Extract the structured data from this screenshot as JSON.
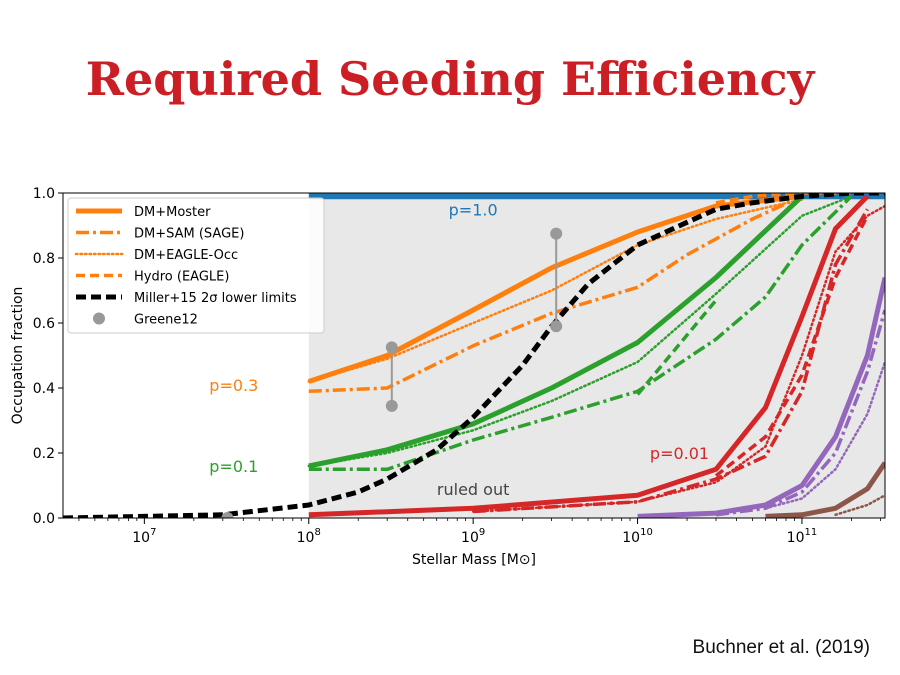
{
  "slide": {
    "title": "Required Seeding Efficiency",
    "citation": "Buchner et al. (2019)"
  },
  "colors": {
    "title": "#cc1f25",
    "orange": "#ff7f0e",
    "green": "#2ca02c",
    "red": "#d62728",
    "purple": "#9467bd",
    "brown": "#8c564b",
    "blue": "#1f77b4",
    "black": "#000000",
    "gray": "#999999",
    "shade": "#e8e8e8"
  },
  "chart_data": {
    "type": "line",
    "xlabel": "Stellar Mass [M⊙]",
    "ylabel": "Occupation fraction",
    "x_scale": "log",
    "xlim": [
      3200000.0,
      320000000000.0
    ],
    "ylim": [
      0,
      1
    ],
    "x_ticks": [
      {
        "value": 10000000.0,
        "base": "10",
        "exp": "7"
      },
      {
        "value": 100000000.0,
        "base": "10",
        "exp": "8"
      },
      {
        "value": 1000000000.0,
        "base": "10",
        "exp": "9"
      },
      {
        "value": 10000000000.0,
        "base": "10",
        "exp": "10"
      },
      {
        "value": 100000000000.0,
        "base": "10",
        "exp": "11"
      }
    ],
    "y_ticks": [
      "0.0",
      "0.2",
      "0.4",
      "0.6",
      "0.8",
      "1.0"
    ],
    "y_tick_values": [
      0,
      0.2,
      0.4,
      0.6,
      0.8,
      1.0
    ],
    "legend_position": "top-left",
    "legend": [
      {
        "label": "DM+Moster",
        "style": "solid"
      },
      {
        "label": "DM+SAM (SAGE)",
        "style": "dashdot"
      },
      {
        "label": "DM+EAGLE-Occ",
        "style": "dotted"
      },
      {
        "label": "Hydro (EAGLE)",
        "style": "dashed"
      },
      {
        "label": "Miller+15 2σ lower limits",
        "style": "black-dashed"
      },
      {
        "label": "Greene12",
        "style": "gray-marker"
      }
    ],
    "annotations": [
      {
        "text": "p=1.0",
        "x": 1000000000.0,
        "y": 0.95,
        "color": "blue"
      },
      {
        "text": "p=0.3",
        "x": 35000000.0,
        "y": 0.41,
        "color": "orange"
      },
      {
        "text": "p=0.1",
        "x": 35000000.0,
        "y": 0.16,
        "color": "green"
      },
      {
        "text": "p=0.01",
        "x": 18000000000.0,
        "y": 0.2,
        "color": "red"
      },
      {
        "text": "ruled out",
        "x": 1000000000.0,
        "y": 0.09,
        "color": "dark"
      }
    ],
    "shaded_region_upper": {
      "x": [
        100000000.0,
        1000000000.0,
        10000000000.0,
        50000000000.0,
        320000000000.0
      ],
      "y": [
        0.99,
        0.99,
        0.99,
        0.99,
        0.99
      ]
    },
    "series": [
      {
        "color": "blue",
        "style": "solid",
        "x": [
          100000000.0,
          320000000000.0
        ],
        "y": [
          0.99,
          0.99
        ]
      },
      {
        "color": "orange",
        "style": "solid",
        "x": [
          100000000.0,
          300000000.0,
          1000000000.0,
          3000000000.0,
          10000000000.0,
          30000000000.0,
          100000000000.0
        ],
        "y": [
          0.42,
          0.5,
          0.64,
          0.77,
          0.88,
          0.96,
          0.99
        ]
      },
      {
        "color": "orange",
        "style": "dashdot",
        "x": [
          100000000.0,
          300000000.0,
          1000000000.0,
          3000000000.0,
          10000000000.0,
          20000000000.0,
          50000000000.0,
          100000000000.0
        ],
        "y": [
          0.39,
          0.4,
          0.53,
          0.63,
          0.71,
          0.81,
          0.92,
          0.99
        ]
      },
      {
        "color": "orange",
        "style": "dotted",
        "x": [
          100000000.0,
          300000000.0,
          1000000000.0,
          3000000000.0,
          10000000000.0,
          30000000000.0,
          100000000000.0
        ],
        "y": [
          0.42,
          0.49,
          0.6,
          0.7,
          0.84,
          0.92,
          0.98
        ]
      },
      {
        "color": "orange",
        "style": "dashed",
        "x": [
          30000000000.0,
          50000000000.0,
          100000000000.0,
          200000000000.0
        ],
        "y": [
          0.97,
          0.99,
          1.0,
          1.0
        ]
      },
      {
        "color": "green",
        "style": "solid",
        "x": [
          100000000.0,
          300000000.0,
          1000000000.0,
          3000000000.0,
          10000000000.0,
          30000000000.0,
          100000000000.0
        ],
        "y": [
          0.16,
          0.21,
          0.29,
          0.4,
          0.54,
          0.74,
          0.99
        ]
      },
      {
        "color": "green",
        "style": "dashdot",
        "x": [
          100000000.0,
          300000000.0,
          1000000000.0,
          3000000000.0,
          10000000000.0,
          30000000000.0,
          60000000000.0,
          100000000000.0,
          200000000000.0
        ],
        "y": [
          0.15,
          0.15,
          0.24,
          0.31,
          0.39,
          0.55,
          0.68,
          0.84,
          0.99
        ]
      },
      {
        "color": "green",
        "style": "dotted",
        "x": [
          100000000.0,
          300000000.0,
          1000000000.0,
          3000000000.0,
          10000000000.0,
          30000000000.0,
          100000000000.0,
          200000000000.0
        ],
        "y": [
          0.16,
          0.2,
          0.27,
          0.36,
          0.48,
          0.69,
          0.93,
          0.99
        ]
      },
      {
        "color": "green",
        "style": "dashed",
        "x": [
          10000000000.0,
          30000000000.0
        ],
        "y": [
          0.38,
          0.67
        ]
      },
      {
        "color": "red",
        "style": "solid",
        "x": [
          100000000.0,
          1000000000.0,
          10000000000.0,
          30000000000.0,
          60000000000.0,
          100000000000.0,
          160000000000.0,
          250000000000.0
        ],
        "y": [
          0.01,
          0.03,
          0.07,
          0.15,
          0.34,
          0.62,
          0.89,
          0.99
        ]
      },
      {
        "color": "red",
        "style": "dashdot",
        "x": [
          1000000000.0,
          10000000000.0,
          30000000000.0,
          60000000000.0,
          100000000000.0,
          160000000000.0,
          250000000000.0
        ],
        "y": [
          0.02,
          0.05,
          0.12,
          0.19,
          0.39,
          0.78,
          0.95
        ]
      },
      {
        "color": "red",
        "style": "dotted",
        "x": [
          1000000000.0,
          10000000000.0,
          30000000000.0,
          60000000000.0,
          100000000000.0,
          160000000000.0,
          250000000000.0,
          320000000000.0
        ],
        "y": [
          0.02,
          0.05,
          0.11,
          0.22,
          0.5,
          0.82,
          0.93,
          0.96
        ]
      },
      {
        "color": "red",
        "style": "dashed",
        "x": [
          30000000000.0,
          60000000000.0,
          100000000000.0,
          160000000000.0,
          250000000000.0
        ],
        "y": [
          0.13,
          0.25,
          0.44,
          0.74,
          0.93
        ]
      },
      {
        "color": "purple",
        "style": "solid",
        "x": [
          10000000000.0,
          30000000000.0,
          60000000000.0,
          100000000000.0,
          160000000000.0,
          250000000000.0,
          320000000000.0
        ],
        "y": [
          0.005,
          0.015,
          0.04,
          0.1,
          0.25,
          0.5,
          0.74
        ]
      },
      {
        "color": "purple",
        "style": "dashdot",
        "x": [
          30000000000.0,
          60000000000.0,
          100000000000.0,
          160000000000.0,
          250000000000.0,
          320000000000.0
        ],
        "y": [
          0.01,
          0.03,
          0.08,
          0.2,
          0.45,
          0.64
        ]
      },
      {
        "color": "purple",
        "style": "dotted",
        "x": [
          60000000000.0,
          100000000000.0,
          160000000000.0,
          250000000000.0,
          320000000000.0
        ],
        "y": [
          0.03,
          0.06,
          0.15,
          0.32,
          0.48
        ]
      },
      {
        "color": "brown",
        "style": "solid",
        "x": [
          60000000000.0,
          100000000000.0,
          160000000000.0,
          250000000000.0,
          320000000000.0
        ],
        "y": [
          0.005,
          0.01,
          0.03,
          0.09,
          0.17
        ]
      },
      {
        "color": "brown",
        "style": "dotted",
        "x": [
          160000000000.0,
          250000000000.0,
          320000000000.0
        ],
        "y": [
          0.01,
          0.04,
          0.07
        ]
      },
      {
        "color": "black",
        "style": "black-dashed",
        "x": [
          3200000.0,
          30000000.0,
          100000000.0,
          200000000.0,
          300000000.0,
          600000000.0,
          1000000000.0,
          2000000000.0,
          3000000000.0,
          5000000000.0,
          10000000000.0,
          20000000000.0,
          30000000000.0,
          50000000000.0,
          100000000000.0,
          200000000000.0,
          320000000000.0
        ],
        "y": [
          0.0,
          0.01,
          0.04,
          0.08,
          0.12,
          0.21,
          0.31,
          0.47,
          0.59,
          0.72,
          0.84,
          0.91,
          0.95,
          0.97,
          0.99,
          1.0,
          1.0
        ]
      }
    ],
    "errorbars": [
      {
        "x": 320000000.0,
        "y_low": 0.345,
        "y_high": 0.525
      },
      {
        "x": 3200000000.0,
        "y_low": 0.59,
        "y_high": 0.875
      }
    ],
    "extra_points": [
      {
        "x": 32000000.0,
        "y": 0.0
      }
    ]
  }
}
